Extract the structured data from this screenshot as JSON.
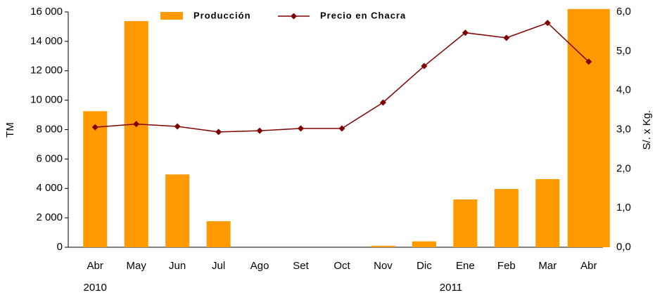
{
  "chart_data": {
    "type": "bar-line",
    "categories": [
      "Abr",
      "May",
      "Jun",
      "Jul",
      "Ago",
      "Set",
      "Oct",
      "Nov",
      "Dic",
      "Ene",
      "Feb",
      "Mar",
      "Abr"
    ],
    "year_labels": [
      "2010",
      "2011"
    ],
    "series": [
      {
        "name": "Producción",
        "type": "bar",
        "color": "#ff9900",
        "axis": "y",
        "values": [
          9250,
          15380,
          4950,
          1770,
          0,
          0,
          0,
          100,
          400,
          3250,
          3960,
          4630,
          16200
        ]
      },
      {
        "name": "Precio en Chacra",
        "type": "line",
        "color": "#800000",
        "axis": "y2",
        "values": [
          3.06,
          3.14,
          3.08,
          2.94,
          2.97,
          3.03,
          3.03,
          3.69,
          4.62,
          5.47,
          5.34,
          5.72,
          4.73
        ]
      }
    ],
    "y_label": "TM",
    "y2_label": "S/. x Kg.",
    "ylim": [
      0,
      16000
    ],
    "yticks": [
      0,
      {
        "value": 2000,
        "label": "2 000"
      },
      {
        "value": 4000,
        "label": "4 000"
      },
      {
        "value": 6000,
        "label": "6 000"
      },
      {
        "value": 8000,
        "label": "8 000"
      },
      {
        "value": 10000,
        "label": "10 000"
      },
      {
        "value": 12000,
        "label": "12 000"
      },
      {
        "value": 14000,
        "label": "14 000"
      },
      {
        "value": 16000,
        "label": "16 000"
      }
    ],
    "y2lim": [
      0,
      6
    ],
    "y2ticks": [
      {
        "value": 0,
        "label": "0,0"
      },
      {
        "value": 1,
        "label": "1,0"
      },
      {
        "value": 2,
        "label": "2,0"
      },
      {
        "value": 3,
        "label": "3,0"
      },
      {
        "value": 4,
        "label": "4,0"
      },
      {
        "value": 5,
        "label": "5,0"
      },
      {
        "value": 6,
        "label": "6,0"
      }
    ],
    "legend": "top"
  }
}
